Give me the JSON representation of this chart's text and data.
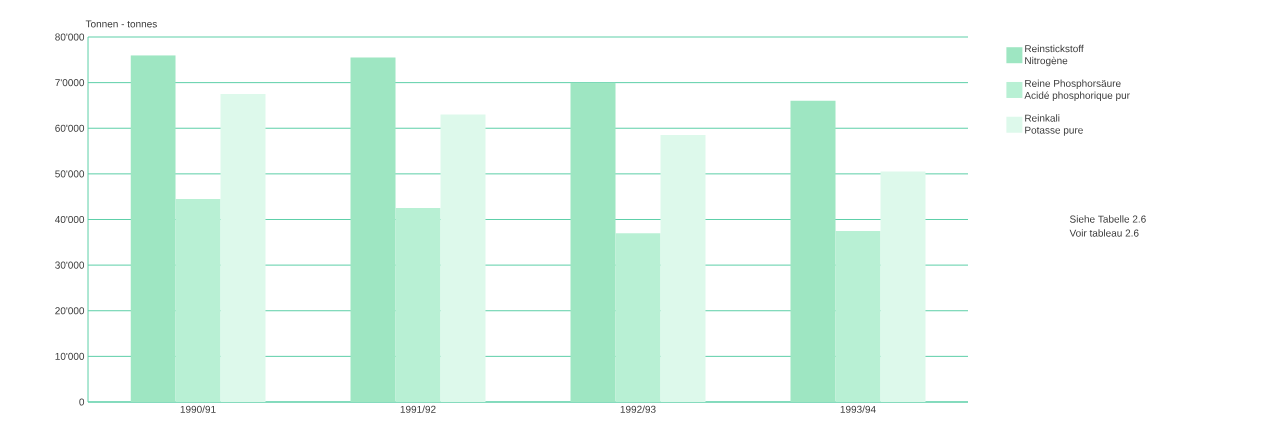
{
  "chart_data": {
    "type": "bar",
    "ylabel": "Tonnen - tonnes",
    "categories": [
      "1990/91",
      "1991/92",
      "1992/93",
      "1993/94"
    ],
    "series": [
      {
        "name": "Reinstickstoff\nNitrogène",
        "color": "#9ee6c2",
        "values": [
          76000,
          75500,
          70000,
          66000
        ]
      },
      {
        "name": "Reine Phosphorsäure\nAcidé phosphorique pur",
        "color": "#b8f0d4",
        "values": [
          44500,
          42500,
          37000,
          37500
        ]
      },
      {
        "name": "Reinkali\nPotasse pure",
        "color": "#ddf9eb",
        "values": [
          67500,
          63000,
          58500,
          50500
        ]
      }
    ],
    "ylim": [
      0,
      80000
    ],
    "yticks": [
      {
        "value": 0,
        "label": "0"
      },
      {
        "value": 10000,
        "label": "10'000"
      },
      {
        "value": 20000,
        "label": "20'000"
      },
      {
        "value": 30000,
        "label": "30'000"
      },
      {
        "value": 40000,
        "label": "40'000"
      },
      {
        "value": 50000,
        "label": "50'000"
      },
      {
        "value": 60000,
        "label": "60'000"
      },
      {
        "value": 70000,
        "label": "7'0000"
      },
      {
        "value": 80000,
        "label": "80'000"
      }
    ],
    "grid": "y",
    "legend": "right",
    "annotations": [
      "Siehe Tabelle 2.6",
      "Voir tableau 2.6"
    ]
  }
}
